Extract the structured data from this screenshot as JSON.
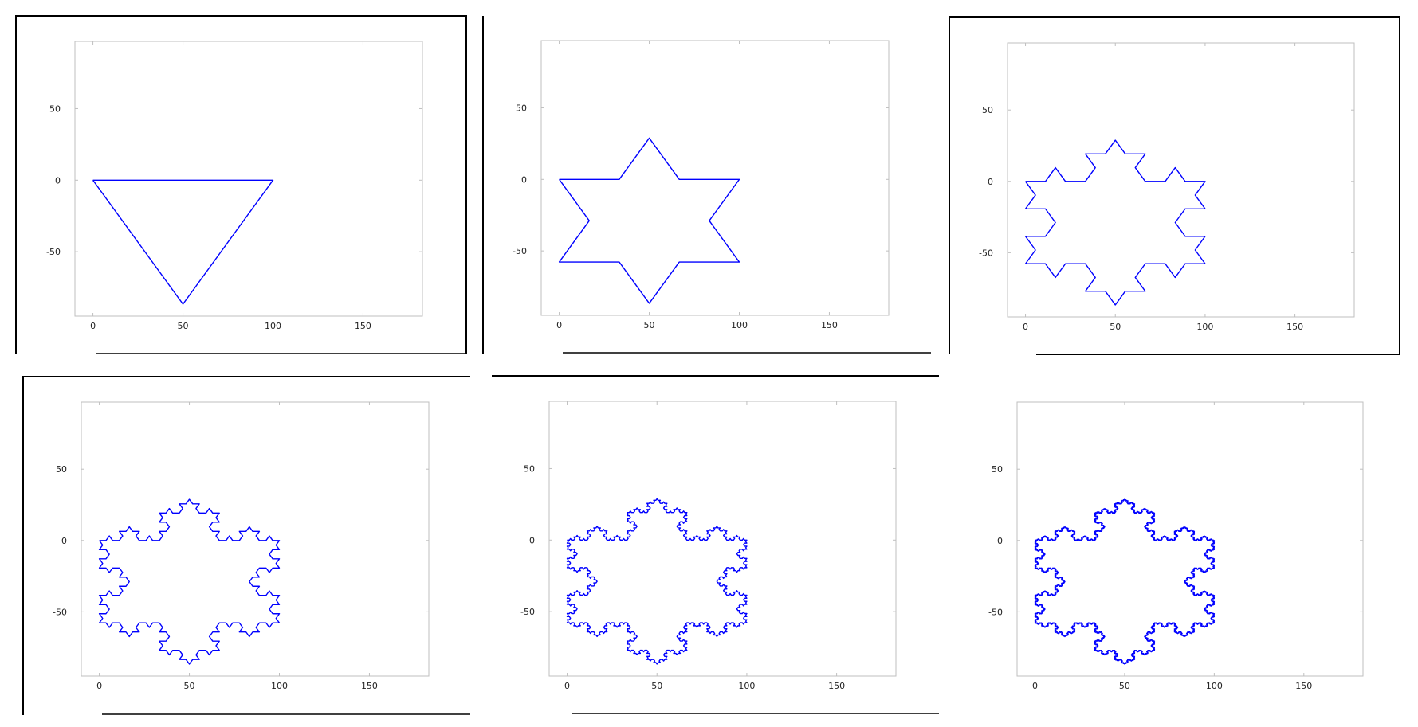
{
  "figure": {
    "line_color": "#0000ff",
    "axes_color": "#bfbfbf",
    "frame_color": "#000000"
  },
  "chart_data": [
    {
      "type": "line",
      "title": "",
      "xlabel": "",
      "ylabel": "",
      "xlim": [
        -10,
        183
      ],
      "ylim": [
        -95,
        97
      ],
      "grid": false,
      "xticks": [
        0,
        50,
        100,
        150
      ],
      "yticks": [
        50,
        0,
        -50
      ],
      "xtick_labels": [
        "0",
        "50",
        "100",
        "150"
      ],
      "ytick_labels": [
        "50",
        "0",
        "-50"
      ],
      "koch_iterations": 0,
      "series": [
        {
          "x": [
            0,
            50,
            100,
            0
          ],
          "y": [
            0,
            -86.6,
            0,
            0
          ]
        }
      ]
    },
    {
      "type": "line",
      "title": "",
      "xlabel": "",
      "ylabel": "",
      "xlim": [
        -10,
        183
      ],
      "ylim": [
        -95,
        97
      ],
      "grid": false,
      "xticks": [
        0,
        50,
        100,
        150
      ],
      "yticks": [
        50,
        0,
        -50
      ],
      "xtick_labels": [
        "0",
        "50",
        "100",
        "150"
      ],
      "ytick_labels": [
        "50",
        "0",
        "-50"
      ],
      "koch_iterations": 1,
      "series": [
        {
          "x": [
            0,
            33.33,
            50,
            66.67,
            100,
            83.33,
            100,
            66.67,
            50,
            33.33,
            0,
            16.67,
            0
          ],
          "y": [
            0,
            0,
            28.87,
            0,
            0,
            -28.87,
            -57.74,
            -57.74,
            -86.6,
            -57.74,
            -57.74,
            -28.87,
            0
          ]
        }
      ]
    },
    {
      "type": "line",
      "title": "",
      "xlabel": "",
      "ylabel": "",
      "xlim": [
        -10,
        183
      ],
      "ylim": [
        -95,
        97
      ],
      "grid": false,
      "xticks": [
        0,
        50,
        100,
        150
      ],
      "yticks": [
        50,
        0,
        -50
      ],
      "xtick_labels": [
        "0",
        "50",
        "100",
        "150"
      ],
      "ytick_labels": [
        "50",
        "0",
        "-50"
      ],
      "koch_iterations": 2,
      "series": [
        {
          "x": [],
          "y": []
        }
      ]
    },
    {
      "type": "line",
      "title": "",
      "xlabel": "",
      "ylabel": "",
      "xlim": [
        -10,
        183
      ],
      "ylim": [
        -95,
        97
      ],
      "grid": false,
      "xticks": [
        0,
        50,
        100,
        150
      ],
      "yticks": [
        50,
        0,
        -50
      ],
      "xtick_labels": [
        "0",
        "50",
        "100",
        "150"
      ],
      "ytick_labels": [
        "50",
        "0",
        "-50"
      ],
      "koch_iterations": 3,
      "series": [
        {
          "x": [],
          "y": []
        }
      ]
    },
    {
      "type": "line",
      "title": "",
      "xlabel": "",
      "ylabel": "",
      "xlim": [
        -10,
        183
      ],
      "ylim": [
        -95,
        97
      ],
      "grid": false,
      "xticks": [
        0,
        50,
        100,
        150
      ],
      "yticks": [
        50,
        0,
        -50
      ],
      "xtick_labels": [
        "0",
        "50",
        "100",
        "150"
      ],
      "ytick_labels": [
        "50",
        "0",
        "-50"
      ],
      "koch_iterations": 4,
      "series": [
        {
          "x": [],
          "y": []
        }
      ]
    },
    {
      "type": "line",
      "title": "",
      "xlabel": "",
      "ylabel": "",
      "xlim": [
        -10,
        183
      ],
      "ylim": [
        -95,
        97
      ],
      "grid": false,
      "xticks": [
        0,
        50,
        100,
        150
      ],
      "yticks": [
        50,
        0,
        -50
      ],
      "xtick_labels": [
        "0",
        "50",
        "100",
        "150"
      ],
      "ytick_labels": [
        "50",
        "0",
        "-50"
      ],
      "koch_iterations": 5,
      "series": [
        {
          "x": [],
          "y": []
        }
      ]
    }
  ]
}
